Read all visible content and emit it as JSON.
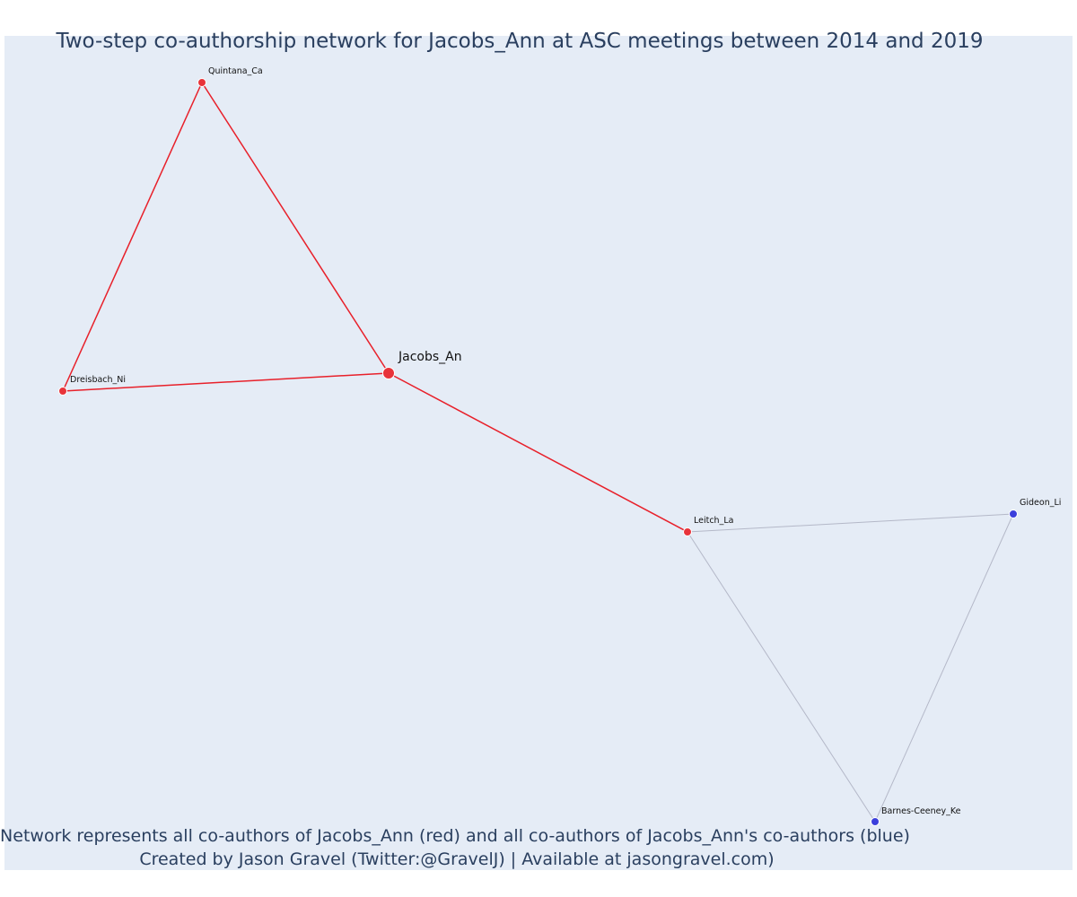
{
  "title": "Two-step co-authorship network for Jacobs_Ann at ASC meetings between 2014 and 2019",
  "caption_line1": "Network represents all co-authors of Jacobs_Ann (red) and all co-authors of Jacobs_Ann's co-authors (blue)",
  "caption_line2": "Created by Jason Gravel (Twitter:@GravelJ) | Available at jasongravel.com)",
  "colors": {
    "plot_background": "#e5ecf6",
    "direct_coauthor": "#e8333a",
    "second_step_coauthor": "#3b3fdc",
    "direct_edge": "#e8202a",
    "second_step_edge": "#b4b8c8",
    "text": "#2a3f5f"
  },
  "network": {
    "focal_node": "Jacobs_An",
    "nodes": [
      {
        "id": "Jacobs_An",
        "label": "Jacobs_An",
        "group": "focal"
      },
      {
        "id": "Quintana_Ca",
        "label": "Quintana_Ca",
        "group": "direct"
      },
      {
        "id": "Dreisbach_Ni",
        "label": "Dreisbach_Ni",
        "group": "direct"
      },
      {
        "id": "Leitch_La",
        "label": "Leitch_La",
        "group": "direct"
      },
      {
        "id": "Gideon_Li",
        "label": "Gideon_Li",
        "group": "second"
      },
      {
        "id": "Barnes-Ceeney_Ke",
        "label": "Barnes-Ceeney_Ke",
        "group": "second"
      }
    ],
    "edges": [
      {
        "source": "Quintana_Ca",
        "target": "Jacobs_An",
        "type": "direct"
      },
      {
        "source": "Quintana_Ca",
        "target": "Dreisbach_Ni",
        "type": "direct"
      },
      {
        "source": "Dreisbach_Ni",
        "target": "Jacobs_An",
        "type": "direct"
      },
      {
        "source": "Jacobs_An",
        "target": "Leitch_La",
        "type": "direct"
      },
      {
        "source": "Leitch_La",
        "target": "Gideon_Li",
        "type": "second"
      },
      {
        "source": "Leitch_La",
        "target": "Barnes-Ceeney_Ke",
        "type": "second"
      },
      {
        "source": "Gideon_Li",
        "target": "Barnes-Ceeney_Ke",
        "type": "second"
      }
    ]
  }
}
